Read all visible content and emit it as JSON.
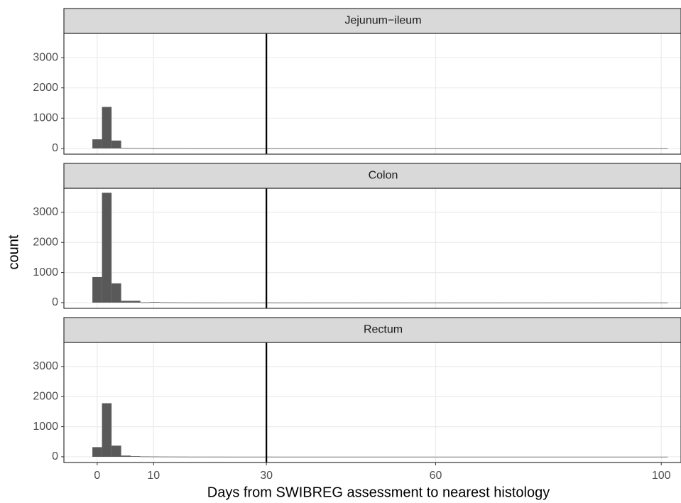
{
  "chart_data": {
    "type": "histogram",
    "xlabel": "Days from SWIBREG assessment to nearest histology",
    "ylabel": "count",
    "color": "#595959",
    "vline": 30,
    "xlim": [
      -5.9,
      103.5
    ],
    "xticks": [
      0,
      10,
      30,
      60,
      100
    ],
    "ylim": [
      -190,
      3800
    ],
    "yticks": [
      0,
      1000,
      2000,
      3000
    ],
    "grid": true,
    "bins": [
      -0.85,
      0.85,
      2.55,
      4.25,
      5.95,
      7.65,
      9.35,
      11.05,
      12.75,
      14.45,
      16.15,
      17.85,
      19.55,
      21.25,
      22.95,
      24.65,
      26.35,
      28.05,
      29.75,
      31.45,
      33.15,
      34.85,
      36.55,
      38.25,
      39.95,
      41.65,
      43.35,
      45.05,
      46.75,
      48.45,
      50.15,
      51.85,
      53.55,
      55.25,
      56.95,
      58.65,
      60.35,
      62.05,
      63.75,
      65.45,
      67.15,
      68.85,
      70.55,
      72.25,
      73.95,
      75.65,
      77.35,
      79.05,
      80.75,
      82.45,
      84.15,
      85.85,
      87.55,
      89.25,
      90.95,
      92.65,
      94.35,
      96.05,
      97.75,
      99.45,
      101.15
    ],
    "facets": [
      {
        "title": "Jejunum−ileum",
        "counts": [
          300,
          1370,
          260,
          15,
          10,
          8,
          5,
          5,
          4,
          4,
          3,
          3,
          3,
          3,
          2,
          2,
          2,
          2,
          3,
          2,
          2,
          2,
          2,
          2,
          2,
          2,
          2,
          2,
          2,
          2,
          2,
          2,
          2,
          2,
          2,
          2,
          2,
          2,
          2,
          2,
          2,
          2,
          2,
          2,
          2,
          2,
          2,
          2,
          2,
          2,
          2,
          2,
          2,
          2,
          2,
          2,
          2,
          2,
          2,
          2
        ]
      },
      {
        "title": "Colon",
        "counts": [
          850,
          3650,
          640,
          60,
          60,
          10,
          20,
          10,
          8,
          6,
          5,
          4,
          4,
          3,
          3,
          3,
          3,
          3,
          4,
          3,
          3,
          3,
          3,
          3,
          3,
          3,
          3,
          3,
          3,
          3,
          3,
          3,
          3,
          3,
          3,
          3,
          3,
          3,
          3,
          3,
          3,
          3,
          3,
          3,
          3,
          3,
          3,
          3,
          3,
          3,
          3,
          3,
          3,
          3,
          3,
          3,
          3,
          3,
          3,
          3
        ]
      },
      {
        "title": "Rectum",
        "counts": [
          320,
          1780,
          370,
          40,
          20,
          10,
          8,
          6,
          5,
          4,
          3,
          3,
          3,
          3,
          2,
          2,
          2,
          2,
          3,
          2,
          2,
          2,
          2,
          2,
          2,
          2,
          2,
          2,
          2,
          2,
          2,
          2,
          2,
          2,
          2,
          2,
          2,
          2,
          2,
          2,
          2,
          2,
          2,
          2,
          2,
          2,
          2,
          2,
          2,
          2,
          2,
          2,
          2,
          2,
          2,
          2,
          2,
          2,
          2,
          2
        ]
      }
    ]
  }
}
